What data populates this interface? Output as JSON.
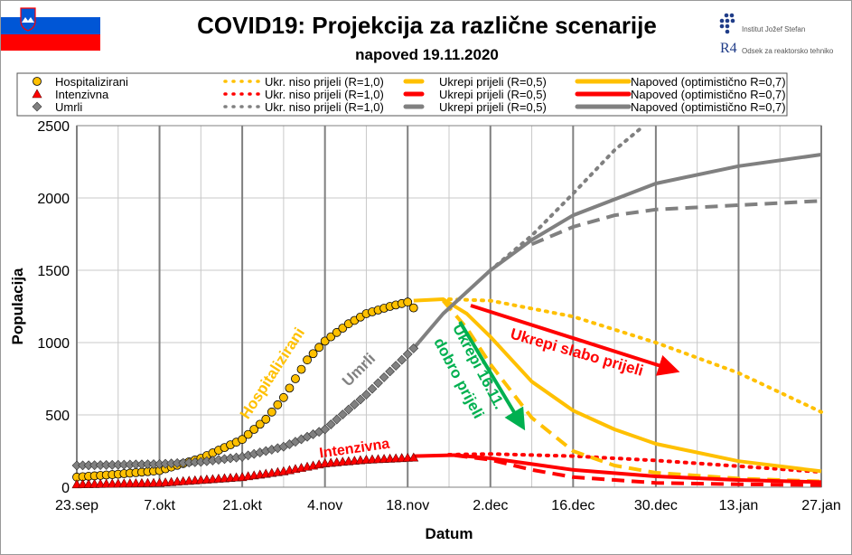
{
  "header": {
    "title": "COVID19: Projekcija za različne scenarije",
    "subtitle": "napoved 19.11.2020",
    "logo1": "Institut Jožef Stefan",
    "logo2": "Odsek za reaktorsko tehniko",
    "logo2_mark": "R4"
  },
  "chart_data": {
    "type": "line",
    "xlabel": "Datum",
    "ylabel": "Populacija",
    "xlim": [
      "2020-09-23",
      "2021-01-27"
    ],
    "ylim": [
      0,
      2500
    ],
    "yticks": [
      0,
      500,
      1000,
      1500,
      2000,
      2500
    ],
    "xticks": [
      {
        "date": "2020-09-23",
        "label": "23.sep"
      },
      {
        "date": "2020-10-07",
        "label": "7.okt"
      },
      {
        "date": "2020-10-21",
        "label": "21.okt"
      },
      {
        "date": "2020-11-04",
        "label": "4.nov"
      },
      {
        "date": "2020-11-18",
        "label": "18.nov"
      },
      {
        "date": "2020-12-02",
        "label": "2.dec"
      },
      {
        "date": "2020-12-16",
        "label": "16.dec"
      },
      {
        "date": "2020-12-30",
        "label": "30.dec"
      },
      {
        "date": "2021-01-13",
        "label": "13.jan"
      },
      {
        "date": "2021-01-27",
        "label": "27.jan"
      }
    ],
    "grid": true,
    "legend_position": "top",
    "colors": {
      "hosp": "#FFC000",
      "int": "#FF0000",
      "umrli": "#808080",
      "green": "#00B050"
    },
    "series": [
      {
        "name": "Hospitalizirani",
        "kind": "markers",
        "marker": "circle",
        "color": "#FFC000",
        "points": [
          [
            "2020-09-23",
            70
          ],
          [
            "2020-09-30",
            90
          ],
          [
            "2020-10-07",
            115
          ],
          [
            "2020-10-14",
            200
          ],
          [
            "2020-10-21",
            330
          ],
          [
            "2020-10-25",
            470
          ],
          [
            "2020-10-28",
            620
          ],
          [
            "2020-11-01",
            880
          ],
          [
            "2020-11-04",
            1010
          ],
          [
            "2020-11-08",
            1130
          ],
          [
            "2020-11-11",
            1200
          ],
          [
            "2020-11-15",
            1250
          ],
          [
            "2020-11-18",
            1280
          ],
          [
            "2020-11-19",
            1240
          ]
        ]
      },
      {
        "name": "Intenzivna",
        "kind": "markers",
        "marker": "triangle",
        "color": "#FF0000",
        "points": [
          [
            "2020-09-23",
            20
          ],
          [
            "2020-10-07",
            30
          ],
          [
            "2020-10-21",
            70
          ],
          [
            "2020-10-28",
            110
          ],
          [
            "2020-11-04",
            165
          ],
          [
            "2020-11-11",
            190
          ],
          [
            "2020-11-19",
            205
          ]
        ]
      },
      {
        "name": "Umrli",
        "kind": "markers",
        "marker": "diamond",
        "color": "#808080",
        "points": [
          [
            "2020-09-23",
            150
          ],
          [
            "2020-10-07",
            160
          ],
          [
            "2020-10-14",
            175
          ],
          [
            "2020-10-21",
            210
          ],
          [
            "2020-10-28",
            280
          ],
          [
            "2020-11-04",
            400
          ],
          [
            "2020-11-11",
            640
          ],
          [
            "2020-11-18",
            920
          ],
          [
            "2020-11-19",
            960
          ]
        ]
      },
      {
        "name": "Ukr. niso prijeli (R=1,0)",
        "kind": "dotted",
        "color": "#FFC000",
        "points": [
          [
            "2020-11-25",
            1300
          ],
          [
            "2020-12-02",
            1290
          ],
          [
            "2020-12-16",
            1180
          ],
          [
            "2020-12-30",
            1000
          ],
          [
            "2021-01-13",
            790
          ],
          [
            "2021-01-27",
            520
          ]
        ]
      },
      {
        "name": "Ukr. niso prijeli (R=1,0)",
        "kind": "dotted",
        "color": "#FF0000",
        "points": [
          [
            "2020-11-25",
            225
          ],
          [
            "2020-12-02",
            230
          ],
          [
            "2020-12-16",
            215
          ],
          [
            "2020-12-30",
            185
          ],
          [
            "2021-01-13",
            145
          ],
          [
            "2021-01-27",
            105
          ]
        ]
      },
      {
        "name": "Ukr. niso prijeli (R=1,0)",
        "kind": "dotted",
        "color": "#808080",
        "points": [
          [
            "2020-12-02",
            1500
          ],
          [
            "2020-12-09",
            1740
          ],
          [
            "2020-12-16",
            2030
          ],
          [
            "2020-12-23",
            2330
          ],
          [
            "2020-12-28",
            2500
          ]
        ]
      },
      {
        "name": "Ukrepi prijeli (R=0,5)",
        "kind": "dashed",
        "color": "#FFC000",
        "points": [
          [
            "2020-11-24",
            1290
          ],
          [
            "2020-11-28",
            1100
          ],
          [
            "2020-12-02",
            850
          ],
          [
            "2020-12-09",
            480
          ],
          [
            "2020-12-16",
            250
          ],
          [
            "2020-12-23",
            150
          ],
          [
            "2020-12-30",
            100
          ],
          [
            "2021-01-13",
            60
          ],
          [
            "2021-01-27",
            40
          ]
        ]
      },
      {
        "name": "Ukrepi prijeli (R=0,5)",
        "kind": "dashed",
        "color": "#FF0000",
        "points": [
          [
            "2020-11-26",
            220
          ],
          [
            "2020-12-02",
            190
          ],
          [
            "2020-12-09",
            120
          ],
          [
            "2020-12-16",
            70
          ],
          [
            "2020-12-30",
            30
          ],
          [
            "2021-01-13",
            20
          ],
          [
            "2021-01-27",
            15
          ]
        ]
      },
      {
        "name": "Ukrepi prijeli (R=0,5)",
        "kind": "dashed",
        "color": "#808080",
        "points": [
          [
            "2020-12-09",
            1680
          ],
          [
            "2020-12-16",
            1800
          ],
          [
            "2020-12-23",
            1880
          ],
          [
            "2020-12-30",
            1920
          ],
          [
            "2021-01-13",
            1950
          ],
          [
            "2021-01-27",
            1980
          ]
        ]
      },
      {
        "name": "Napoved (optimistično R=0,7)",
        "kind": "solid",
        "color": "#FFC000",
        "points": [
          [
            "2020-11-19",
            1290
          ],
          [
            "2020-11-24",
            1300
          ],
          [
            "2020-11-28",
            1200
          ],
          [
            "2020-12-02",
            1040
          ],
          [
            "2020-12-09",
            730
          ],
          [
            "2020-12-16",
            530
          ],
          [
            "2020-12-23",
            400
          ],
          [
            "2020-12-30",
            300
          ],
          [
            "2021-01-13",
            180
          ],
          [
            "2021-01-27",
            110
          ]
        ]
      },
      {
        "name": "Napoved (optimistično R=0,7)",
        "kind": "solid",
        "color": "#FF0000",
        "points": [
          [
            "2020-11-19",
            215
          ],
          [
            "2020-11-26",
            222
          ],
          [
            "2020-12-02",
            200
          ],
          [
            "2020-12-09",
            160
          ],
          [
            "2020-12-16",
            120
          ],
          [
            "2020-12-30",
            75
          ],
          [
            "2021-01-13",
            50
          ],
          [
            "2021-01-27",
            35
          ]
        ]
      },
      {
        "name": "Napoved (optimistično R=0,7)",
        "kind": "solid",
        "color": "#808080",
        "points": [
          [
            "2020-11-19",
            960
          ],
          [
            "2020-11-24",
            1200
          ],
          [
            "2020-12-02",
            1500
          ],
          [
            "2020-12-09",
            1710
          ],
          [
            "2020-12-16",
            1880
          ],
          [
            "2020-12-30",
            2100
          ],
          [
            "2021-01-13",
            2220
          ],
          [
            "2021-01-27",
            2300
          ]
        ]
      }
    ],
    "annotations": {
      "hosp_label": "Hospitalizirani",
      "umrli_label": "Umrli",
      "int_label": "Intenzivna",
      "slabo": "Ukrepi slabo prijeli",
      "dobro1": "Ukrepi 16.11.",
      "dobro2": "dobro prijeli"
    }
  },
  "legend": [
    {
      "label": "Hospitalizirani",
      "kind": "circle",
      "color": "#FFC000"
    },
    {
      "label": "Ukr. niso prijeli (R=1,0)",
      "kind": "dotted",
      "color": "#FFC000"
    },
    {
      "label": "Ukrepi prijeli (R=0,5)",
      "kind": "dashed",
      "color": "#FFC000"
    },
    {
      "label": "Napoved (optimistično R=0,7)",
      "kind": "solid",
      "color": "#FFC000"
    },
    {
      "label": "Intenzivna",
      "kind": "triangle",
      "color": "#FF0000"
    },
    {
      "label": "Ukr. niso prijeli (R=1,0)",
      "kind": "dotted",
      "color": "#FF0000"
    },
    {
      "label": "Ukrepi prijeli (R=0,5)",
      "kind": "dashed",
      "color": "#FF0000"
    },
    {
      "label": "Napoved (optimistično R=0,7)",
      "kind": "solid",
      "color": "#FF0000"
    },
    {
      "label": "Umrli",
      "kind": "diamond",
      "color": "#808080"
    },
    {
      "label": "Ukr. niso prijeli (R=1,0)",
      "kind": "dotted",
      "color": "#808080"
    },
    {
      "label": "Ukrepi prijeli (R=0,5)",
      "kind": "dashed",
      "color": "#808080"
    },
    {
      "label": "Napoved (optimistično R=0,7)",
      "kind": "solid",
      "color": "#808080"
    }
  ]
}
